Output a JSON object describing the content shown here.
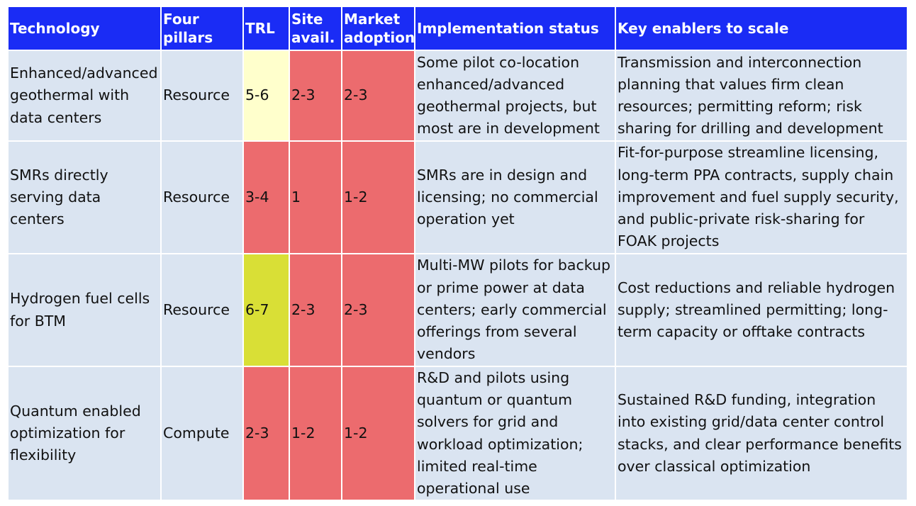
{
  "headers": {
    "technology": "Technology",
    "pillars_line1": "Four",
    "pillars_line2": "pillars",
    "trl": "TRL",
    "site_line1": "Site",
    "site_line2": "avail.",
    "market_line1": "Market",
    "market_line2": "adoption",
    "implementation": "Implementation status",
    "enablers": "Key enablers to scale"
  },
  "colors": {
    "header_bg": "#1a2cf5",
    "row_bg": "#dae4f1",
    "score_red": "#ec6b6e",
    "score_pale_yellow": "#ffffcc",
    "score_lime": "#d9df36"
  },
  "rows": [
    {
      "technology": "Enhanced/advanced geothermal with data centers",
      "pillar": "Resource",
      "trl": "5-6",
      "site": "2-3",
      "market": "2-3",
      "implementation": "Some pilot co-location enhanced/advanced geothermal projects, but most are in development",
      "enablers": "Transmission and interconnection planning that values firm clean resources; permitting reform; risk sharing for drilling and development"
    },
    {
      "technology": "SMRs directly serving data centers",
      "pillar": "Resource",
      "trl": "3-4",
      "site": "1",
      "market": "1-2",
      "implementation": "SMRs are in design and licensing; no commercial operation yet",
      "enablers": "Fit-for-purpose streamline licensing, long-term PPA contracts, supply chain improvement and fuel supply security, and public-private risk-sharing for FOAK projects"
    },
    {
      "technology": "Hydrogen fuel cells for BTM",
      "pillar": "Resource",
      "trl": "6-7",
      "site": "2-3",
      "market": "2-3",
      "implementation": "Multi-MW pilots for backup or prime power at data centers; early commercial offerings from several vendors",
      "enablers": "Cost reductions and reliable hydrogen supply; streamlined permitting; long-term capacity or offtake contracts"
    },
    {
      "technology": "Quantum enabled optimization for flexibility",
      "pillar": "Compute",
      "trl": "2-3",
      "site": "1-2",
      "market": "1-2",
      "implementation": "R&D and pilots using quantum or quantum solvers for grid and workload optimization; limited real-time operational use",
      "enablers": "Sustained R&D funding, integration into existing grid/data center control stacks, and clear performance benefits over classical optimization"
    }
  ]
}
